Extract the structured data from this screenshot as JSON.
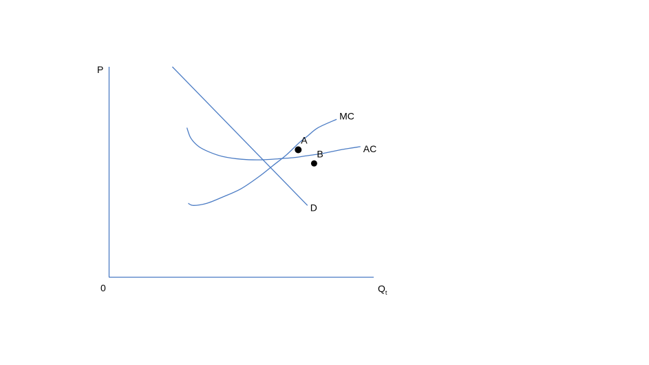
{
  "chart_data": {
    "type": "line",
    "title": "",
    "xlabel": "Q",
    "xlabel_subscript": "t",
    "ylabel": "P",
    "origin_label": "0",
    "xlim": [
      0,
      100
    ],
    "ylim": [
      0,
      100
    ],
    "grid": false,
    "line_color": "#4a7bc4",
    "axis_color": "#4a7bc4",
    "point_color": "#000000",
    "series": [
      {
        "name": "D",
        "x": [
          24,
          75
        ],
        "y": [
          100,
          34
        ]
      },
      {
        "name": "MC",
        "x": [
          30,
          32,
          37,
          43,
          50,
          57,
          62,
          67,
          72,
          75,
          79,
          86
        ],
        "y": [
          35,
          34,
          35,
          38,
          42,
          48,
          53,
          58,
          64,
          67,
          71,
          75
        ]
      },
      {
        "name": "AC",
        "x": [
          29.5,
          31,
          34,
          38,
          43,
          50,
          57,
          64,
          70,
          75,
          81,
          88,
          95
        ],
        "y": [
          71,
          66,
          62,
          59.4,
          57.3,
          56,
          55.7,
          56.2,
          56.8,
          57.7,
          58.8,
          60.6,
          62
        ]
      }
    ],
    "points": [
      {
        "label": "A",
        "x": 71.5,
        "y": 60.5
      },
      {
        "label": "B",
        "x": 77.5,
        "y": 54
      }
    ]
  }
}
